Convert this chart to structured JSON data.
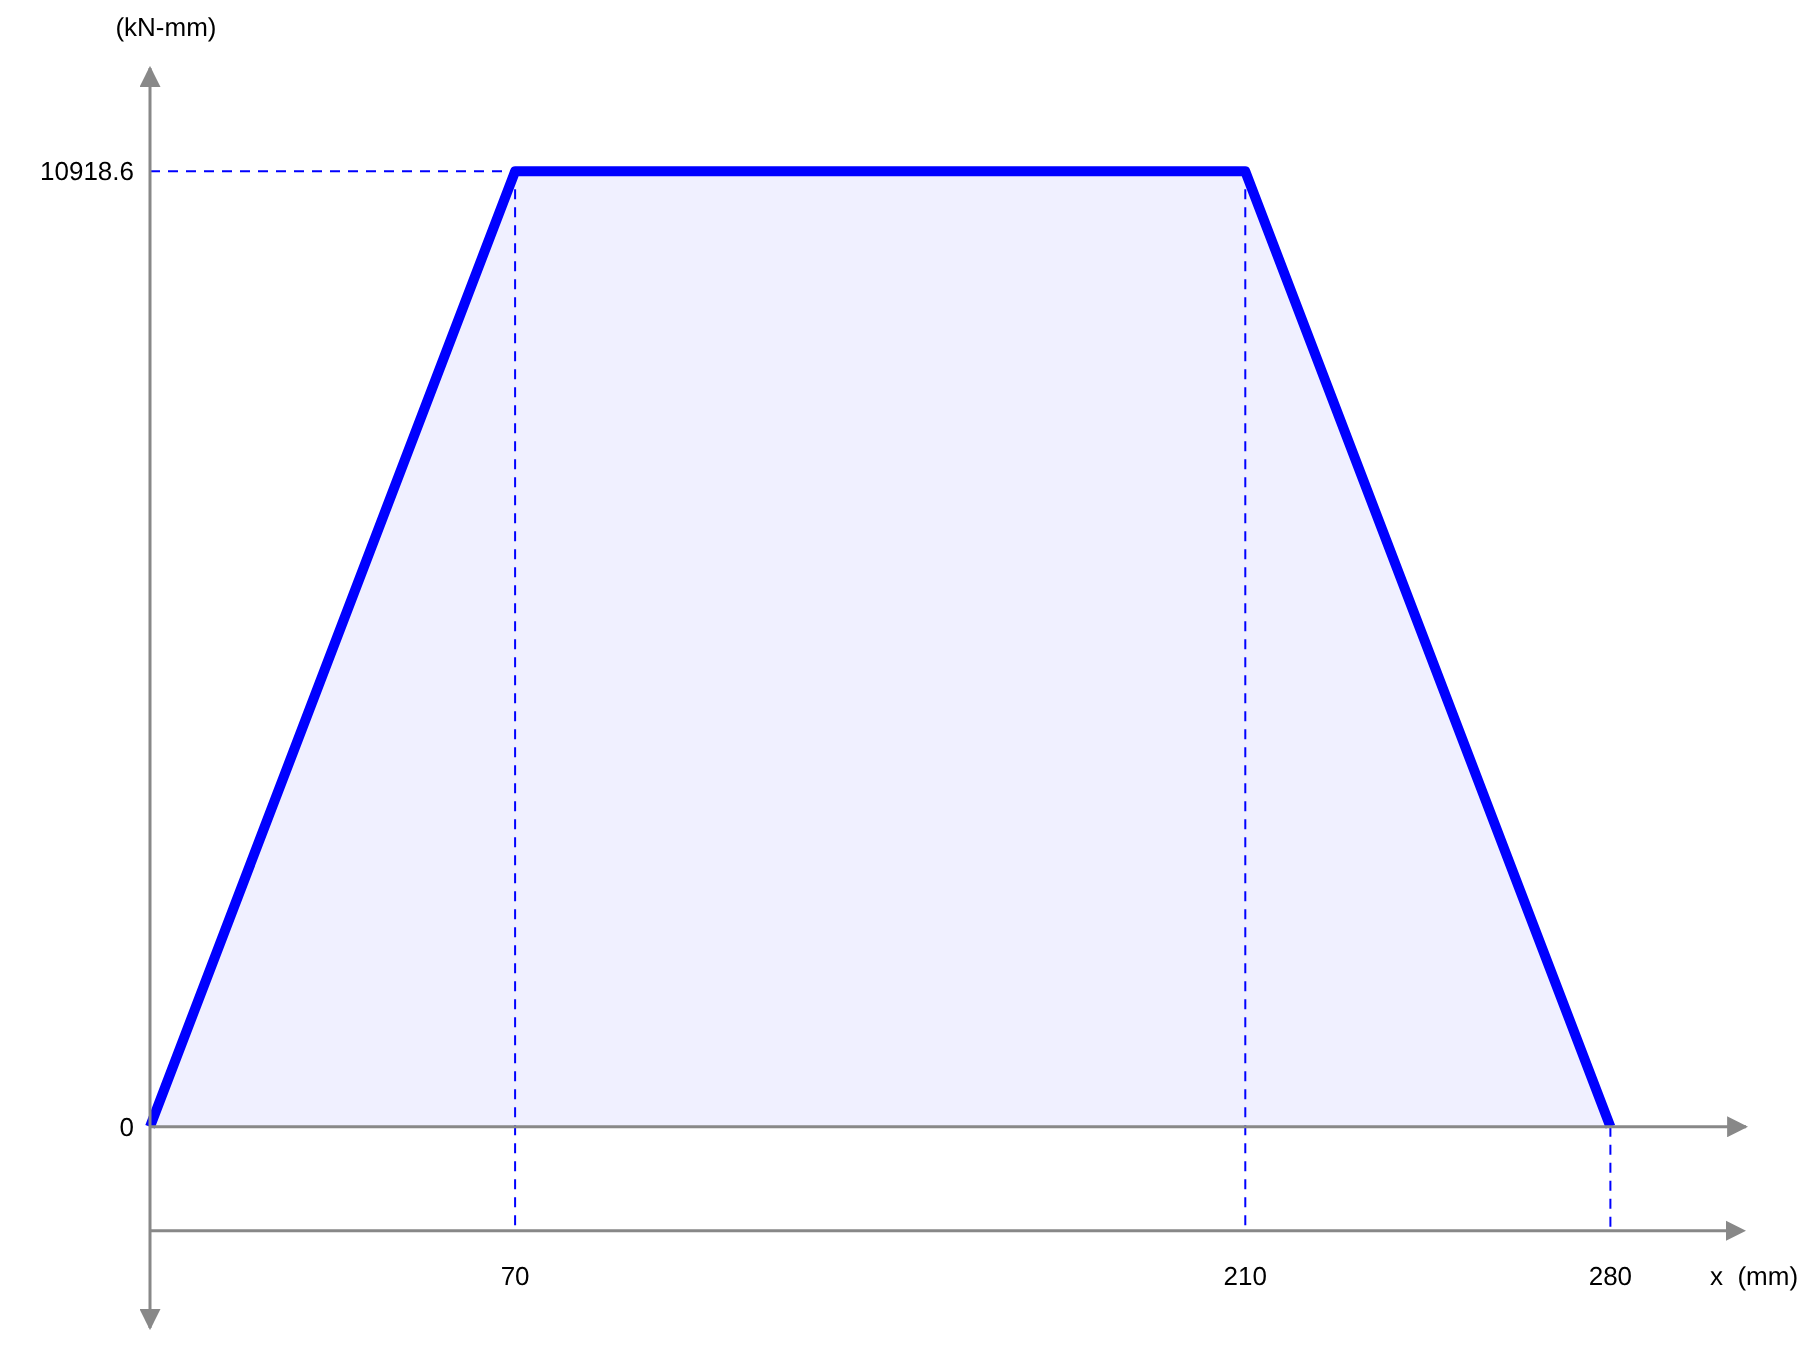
{
  "chart_data": {
    "type": "area",
    "xlabel": "x  (mm)",
    "ylabel": "(kN-mm)",
    "x": [
      0,
      70,
      210,
      280
    ],
    "series": [
      {
        "color": "#0000ff",
        "values": [
          0,
          10918.6,
          10918.6,
          0
        ]
      }
    ],
    "xlim": [
      0,
      306
    ],
    "ylim": [
      -2300,
      12100
    ],
    "xticks": [
      70,
      210,
      280
    ],
    "yticks": [
      0,
      10918.6
    ],
    "grid": false,
    "marker": "none",
    "line_style": "solid",
    "ref_lines": [
      {
        "axis": "x",
        "value": 70,
        "color": "#0000ff",
        "line_style": "dashed"
      },
      {
        "axis": "x",
        "value": 210,
        "color": "#0000ff",
        "line_style": "dashed"
      },
      {
        "axis": "x",
        "value": 280,
        "color": "#0000ff",
        "line_style": "dashed"
      },
      {
        "axis": "y",
        "value": 10918.6,
        "color": "#0000ff",
        "line_style": "dashed"
      }
    ]
  }
}
